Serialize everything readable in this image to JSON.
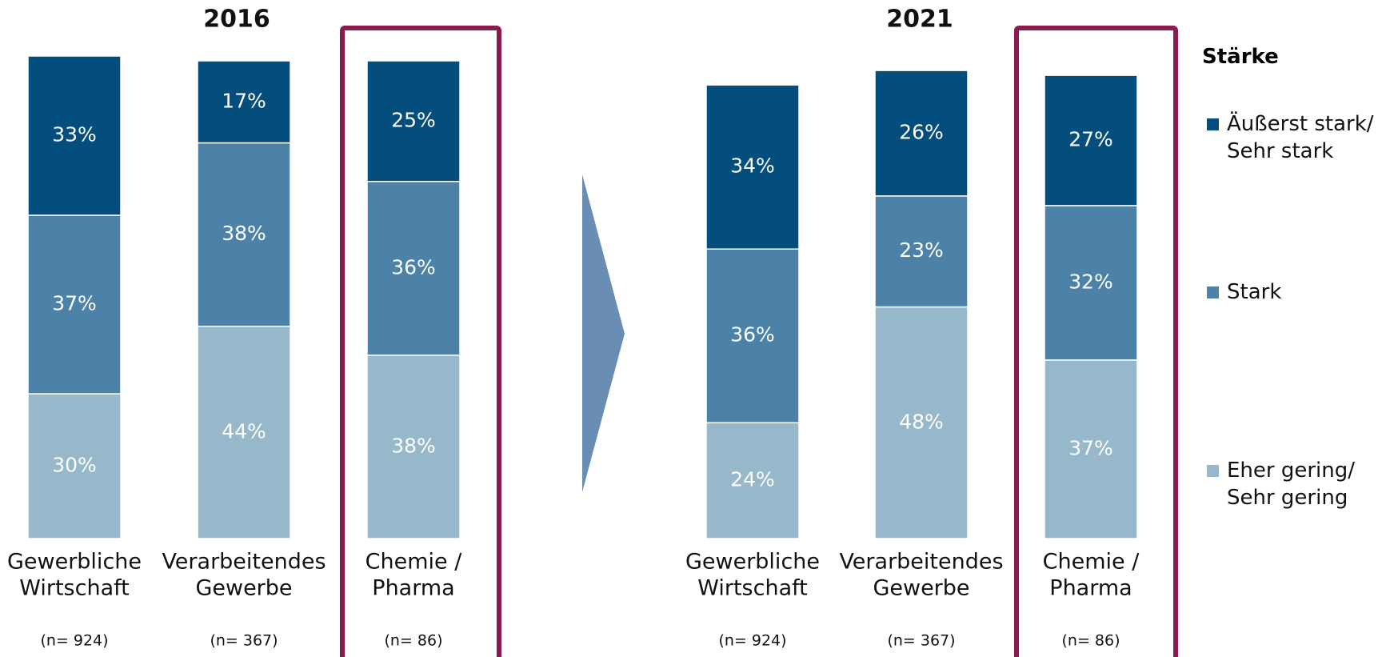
{
  "chart_data": [
    {
      "type": "stacked_bar",
      "title": "2016",
      "categories": [
        [
          "Gewerbliche",
          "Wirtschaft"
        ],
        [
          "Verarbeitendes",
          "Gewerbe"
        ],
        [
          "Chemie /",
          "Pharma"
        ]
      ],
      "sample_sizes": [
        "(n= 924)",
        "(n= 367)",
        "(n= 86)"
      ],
      "ylim": [
        0,
        100
      ],
      "highlight": 2,
      "series": [
        {
          "name": "Eher gering/ Sehr gering",
          "color": "#97b8cb",
          "values": [
            30,
            44,
            38
          ],
          "value_labels": [
            "30%",
            "44%",
            "38%"
          ]
        },
        {
          "name": "Stark",
          "color": "#4d82a8",
          "values": [
            37,
            38,
            36
          ],
          "value_labels": [
            "37%",
            "38%",
            "36%"
          ]
        },
        {
          "name": "Äußerst stark/ Sehr stark",
          "color": "#044e7e",
          "values": [
            33,
            17,
            25
          ],
          "value_labels": [
            "33%",
            "17%",
            "25%"
          ]
        }
      ]
    },
    {
      "type": "stacked_bar",
      "title": "2021",
      "categories": [
        [
          "Gewerbliche",
          "Wirtschaft"
        ],
        [
          "Verarbeitendes",
          "Gewerbe"
        ],
        [
          "Chemie /",
          "Pharma"
        ]
      ],
      "sample_sizes": [
        "(n= 924)",
        "(n= 367)",
        "(n= 86)"
      ],
      "ylim": [
        0,
        100
      ],
      "highlight": 2,
      "series": [
        {
          "name": "Eher gering/ Sehr gering",
          "color": "#97b8cb",
          "values": [
            24,
            48,
            37
          ],
          "value_labels": [
            "24%",
            "48%",
            "37%"
          ]
        },
        {
          "name": "Stark",
          "color": "#4d82a8",
          "values": [
            36,
            23,
            32
          ],
          "value_labels": [
            "36%",
            "23%",
            "32%"
          ]
        },
        {
          "name": "Äußerst stark/ Sehr stark",
          "color": "#044e7e",
          "values": [
            34,
            26,
            27
          ],
          "value_labels": [
            "34%",
            "26%",
            "27%"
          ]
        }
      ]
    }
  ],
  "legend": {
    "title": "Stärke"
  }
}
